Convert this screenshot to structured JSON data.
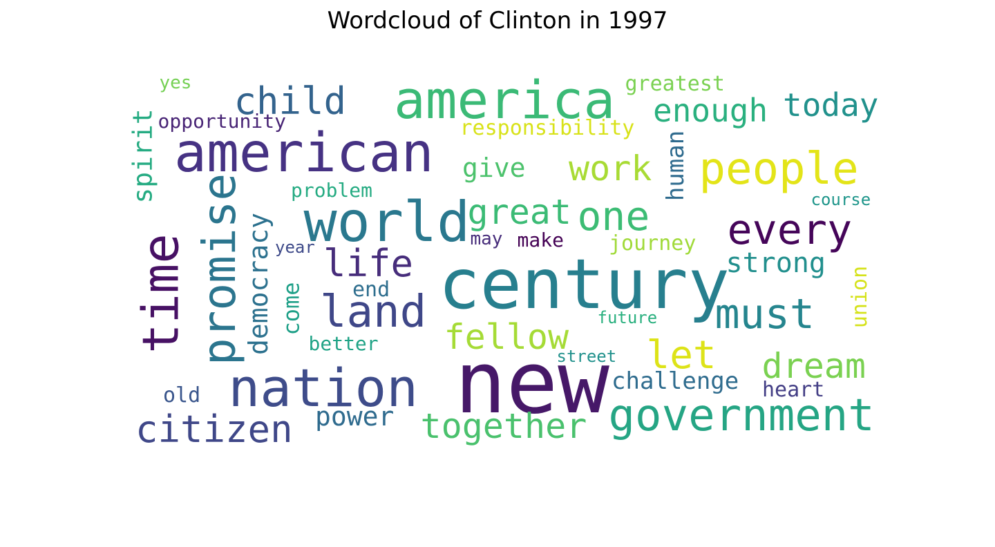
{
  "title": "Wordcloud of Clinton in 1997",
  "words": [
    {
      "text": "new",
      "color": "#461868"
    },
    {
      "text": "century",
      "color": "#277F8E"
    },
    {
      "text": "america",
      "color": "#3BBA76"
    },
    {
      "text": "american",
      "color": "#463283"
    },
    {
      "text": "world",
      "color": "#2A788E"
    },
    {
      "text": "nation",
      "color": "#3E4C8A"
    },
    {
      "text": "time",
      "color": "#471164"
    },
    {
      "text": "promise",
      "color": "#2B758E"
    },
    {
      "text": "people",
      "color": "#E3E418"
    },
    {
      "text": "land",
      "color": "#3F4788"
    },
    {
      "text": "government",
      "color": "#25A584"
    },
    {
      "text": "every",
      "color": "#450559"
    },
    {
      "text": "must",
      "color": "#25858E"
    },
    {
      "text": "one",
      "color": "#3CBC74"
    },
    {
      "text": "child",
      "color": "#33638D"
    },
    {
      "text": "citizen",
      "color": "#3F4788"
    },
    {
      "text": "life",
      "color": "#472D7B"
    },
    {
      "text": "fellow",
      "color": "#A5DB36"
    },
    {
      "text": "together",
      "color": "#4AC16D"
    },
    {
      "text": "let",
      "color": "#DDE318"
    },
    {
      "text": "dream",
      "color": "#7AD151"
    },
    {
      "text": "work",
      "color": "#A8DB34"
    },
    {
      "text": "great",
      "color": "#3BBB75"
    },
    {
      "text": "enough",
      "color": "#2AB07F"
    },
    {
      "text": "today",
      "color": "#21918C"
    },
    {
      "text": "strong",
      "color": "#218F8D"
    },
    {
      "text": "spirit",
      "color": "#25AB82"
    },
    {
      "text": "democracy",
      "color": "#2C718E"
    },
    {
      "text": "power",
      "color": "#2F6B8E"
    },
    {
      "text": "give",
      "color": "#4CC26C"
    },
    {
      "text": "human",
      "color": "#2F6B8E"
    },
    {
      "text": "challenge",
      "color": "#2F6C8E"
    },
    {
      "text": "come",
      "color": "#1FA088"
    },
    {
      "text": "greatest",
      "color": "#7AD151"
    },
    {
      "text": "responsibility",
      "color": "#D8E219"
    },
    {
      "text": "journey",
      "color": "#A0DA39"
    },
    {
      "text": "union",
      "color": "#D5E21A"
    },
    {
      "text": "heart",
      "color": "#433E85"
    },
    {
      "text": "opportunity",
      "color": "#482475"
    },
    {
      "text": "problem",
      "color": "#25AB82"
    },
    {
      "text": "make",
      "color": "#440154"
    },
    {
      "text": "end",
      "color": "#2E6E8E"
    },
    {
      "text": "better",
      "color": "#20A386"
    },
    {
      "text": "old",
      "color": "#39558C"
    },
    {
      "text": "may",
      "color": "#472D7B"
    },
    {
      "text": "yes",
      "color": "#75D054"
    },
    {
      "text": "year",
      "color": "#3E4A89"
    },
    {
      "text": "course",
      "color": "#1F968B"
    },
    {
      "text": "future",
      "color": "#2AB07F"
    },
    {
      "text": "street",
      "color": "#21918C"
    }
  ]
}
